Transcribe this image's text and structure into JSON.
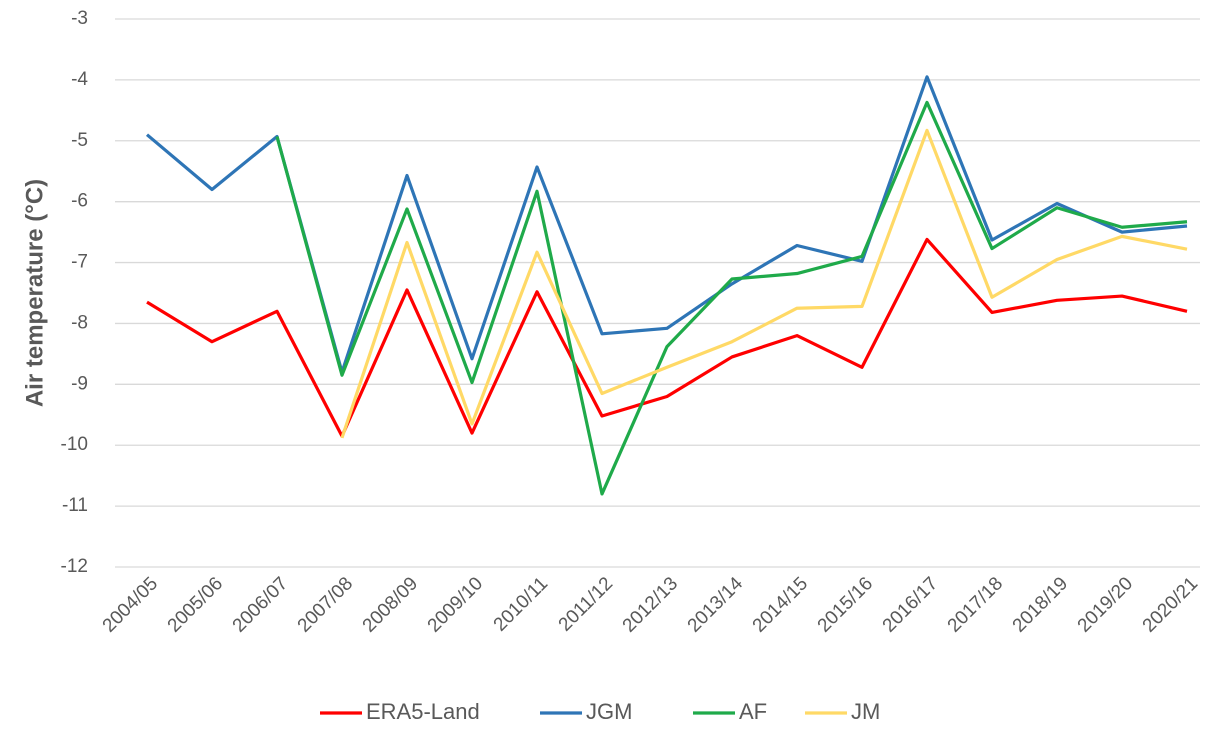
{
  "chart_data": {
    "type": "line",
    "y_label": "Air temperature (°C)",
    "categories": [
      "2004/05",
      "2005/06",
      "2006/07",
      "2007/08",
      "2008/09",
      "2009/10",
      "2010/11",
      "2011/12",
      "2012/13",
      "2013/14",
      "2014/15",
      "2015/16",
      "2016/17",
      "2017/18",
      "2018/19",
      "2019/20",
      "2020/21"
    ],
    "series": [
      {
        "name": "ERA5-Land",
        "color": "#ff0000",
        "values": [
          -7.65,
          -8.3,
          -7.8,
          -9.85,
          -7.45,
          -9.8,
          -7.48,
          -9.52,
          -9.2,
          -8.55,
          -8.2,
          -8.72,
          -6.62,
          -7.82,
          -7.62,
          -7.55,
          -7.8
        ]
      },
      {
        "name": "JGM",
        "color": "#2e75b6",
        "values": [
          -4.9,
          -5.8,
          -4.93,
          -8.8,
          -5.57,
          -8.58,
          -5.43,
          -8.17,
          -8.08,
          -7.35,
          -6.72,
          -6.98,
          -3.95,
          -6.63,
          -6.03,
          -6.5,
          -6.4
        ]
      },
      {
        "name": "AF",
        "color": "#1faa4a",
        "values": [
          null,
          null,
          -4.93,
          -8.85,
          -6.12,
          -8.97,
          -5.83,
          -10.8,
          -8.38,
          -7.27,
          -7.18,
          -6.9,
          -4.37,
          -6.77,
          -6.1,
          -6.42,
          -6.33
        ]
      },
      {
        "name": "JM",
        "color": "#ffd966",
        "values": [
          null,
          null,
          null,
          -9.88,
          -6.67,
          -9.65,
          -6.83,
          -9.15,
          -8.72,
          -8.3,
          -7.75,
          -7.72,
          -4.83,
          -7.57,
          -6.95,
          -6.57,
          -6.78
        ]
      }
    ],
    "ylim": [
      -12,
      -3
    ],
    "yticks": [
      -12,
      -11,
      -10,
      -9,
      -8,
      -7,
      -6,
      -5,
      -4,
      -3
    ],
    "grid": true,
    "legend": "bottom"
  }
}
